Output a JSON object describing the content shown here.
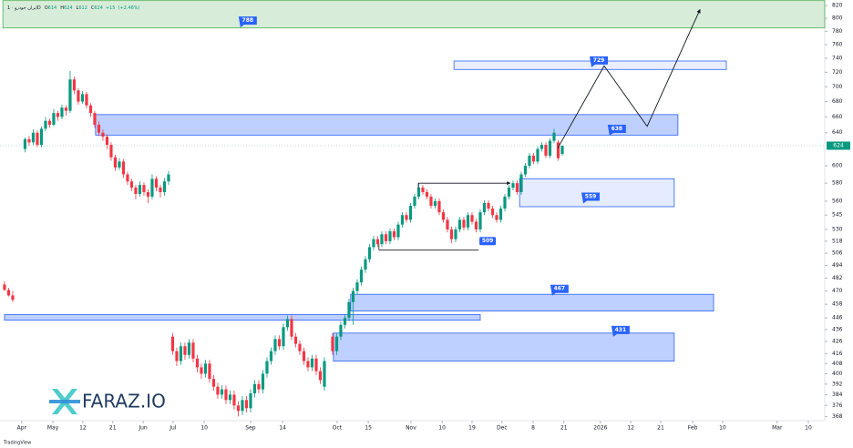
{
  "chart_data": {
    "type": "candlestick",
    "title": "ایران خودرو · 1D",
    "ohlc": [
      {
        "label": "O",
        "value": 614
      },
      {
        "label": "H",
        "value": 624
      },
      {
        "label": "L",
        "value": 612
      },
      {
        "label": "C",
        "value": 624
      }
    ],
    "change": [
      {
        "value": 15,
        "label": "+15"
      },
      {
        "value": 2.46,
        "label": "(+2.46%)"
      }
    ],
    "watermark": "FARAZ.IO",
    "footer": "TradingView",
    "up_color": "#089981",
    "down_color": "#f23645",
    "log_scale": true,
    "grid": false,
    "xlim": [
      -1.1,
      200
    ],
    "ylim": [
      365,
      829
    ],
    "xticks": [
      {
        "value": 4.2,
        "label": "Apr"
      },
      {
        "value": 11.8,
        "label": "May"
      },
      {
        "value": 19.1,
        "label": "12"
      },
      {
        "value": 26.4,
        "label": "21"
      },
      {
        "value": 33.8,
        "label": "Jun"
      },
      {
        "value": 41.1,
        "label": "Jul"
      },
      {
        "value": 48.7,
        "label": "10"
      },
      {
        "value": 60,
        "label": "Sep"
      },
      {
        "value": 67.8,
        "label": "14"
      },
      {
        "value": 81.1,
        "label": "Oct"
      },
      {
        "value": 88.7,
        "label": "15"
      },
      {
        "value": 99.1,
        "label": "Nov"
      },
      {
        "value": 106.7,
        "label": "10"
      },
      {
        "value": 114,
        "label": "19"
      },
      {
        "value": 121.3,
        "label": "Dec"
      },
      {
        "value": 128.9,
        "label": "8"
      },
      {
        "value": 136.4,
        "label": "21"
      },
      {
        "value": 145.3,
        "label": "2026"
      },
      {
        "value": 152.7,
        "label": "12"
      },
      {
        "value": 160,
        "label": "21"
      },
      {
        "value": 167.8,
        "label": "Feb"
      },
      {
        "value": 175.1,
        "label": "10"
      },
      {
        "value": 188.4,
        "label": "Mar"
      },
      {
        "value": 196,
        "label": "10"
      }
    ],
    "yticks": [
      820,
      800,
      780,
      760,
      740,
      720,
      700,
      680,
      660,
      640,
      600,
      580,
      560,
      545,
      530,
      518,
      506,
      494,
      482,
      470,
      458,
      446,
      436,
      426,
      416,
      408,
      400,
      392,
      384,
      376,
      368
    ],
    "x": [
      0,
      1,
      2,
      5,
      6,
      7,
      8,
      9,
      10,
      11,
      12,
      13,
      14,
      15,
      16,
      17,
      18,
      19,
      20,
      21,
      22,
      23,
      24,
      25,
      26,
      27,
      28,
      29,
      30,
      31,
      32,
      33,
      34,
      35,
      36,
      37,
      38,
      39,
      40,
      41,
      42,
      43,
      44,
      45,
      46,
      47,
      48,
      49,
      50,
      51,
      52,
      53,
      54,
      55,
      56,
      57,
      58,
      59,
      60,
      61,
      62,
      63,
      64,
      65,
      66,
      67,
      68,
      69,
      70,
      71,
      72,
      73,
      74,
      75,
      76,
      77,
      78,
      80,
      81,
      82,
      83,
      84,
      85,
      86,
      87,
      88,
      89,
      90,
      91,
      92,
      93,
      94,
      95,
      96,
      97,
      98,
      99,
      100,
      101,
      102,
      103,
      104,
      105,
      106,
      107,
      108,
      109,
      110,
      111,
      112,
      113,
      114,
      115,
      116,
      117,
      118,
      119,
      120,
      121,
      122,
      123,
      124,
      125,
      126,
      127,
      128,
      129,
      130,
      131,
      132,
      133,
      134,
      135,
      136
    ],
    "open": [
      476,
      471,
      466,
      620,
      632,
      628,
      640,
      625,
      645,
      655,
      650,
      665,
      660,
      672,
      668,
      710,
      695,
      680,
      690,
      675,
      665,
      650,
      640,
      635,
      625,
      610,
      598,
      605,
      590,
      582,
      575,
      568,
      578,
      570,
      565,
      585,
      575,
      570,
      582,
      430,
      418,
      410,
      422,
      415,
      425,
      412,
      405,
      400,
      408,
      396,
      390,
      384,
      388,
      380,
      384,
      376,
      372,
      380,
      374,
      385,
      392,
      388,
      400,
      410,
      418,
      428,
      422,
      438,
      445,
      430,
      424,
      418,
      410,
      405,
      412,
      402,
      390,
      430,
      418,
      430,
      440,
      446,
      460,
      470,
      478,
      490,
      500,
      512,
      520,
      515,
      525,
      518,
      528,
      522,
      535,
      545,
      540,
      555,
      565,
      575,
      570,
      565,
      555,
      560,
      548,
      540,
      530,
      520,
      530,
      540,
      532,
      545,
      538,
      530,
      548,
      558,
      552,
      545,
      540,
      552,
      565,
      575,
      580,
      570,
      590,
      600,
      612,
      605,
      620,
      625,
      612,
      630,
      628,
      614
    ],
    "high": [
      479,
      473,
      470,
      634,
      636,
      644,
      643,
      648,
      660,
      658,
      670,
      668,
      676,
      675,
      722,
      714,
      698,
      694,
      693,
      678,
      668,
      654,
      644,
      638,
      628,
      613,
      609,
      608,
      593,
      585,
      578,
      582,
      581,
      573,
      590,
      588,
      578,
      586,
      594,
      433,
      421,
      425,
      425,
      428,
      428,
      415,
      408,
      411,
      411,
      399,
      393,
      391,
      391,
      387,
      387,
      379,
      383,
      383,
      388,
      395,
      395,
      403,
      413,
      421,
      431,
      431,
      441,
      448,
      448,
      433,
      427,
      421,
      413,
      415,
      415,
      405,
      413,
      433,
      433,
      443,
      449,
      463,
      473,
      481,
      493,
      503,
      515,
      523,
      523,
      528,
      528,
      531,
      531,
      538,
      548,
      548,
      558,
      568,
      580,
      578,
      573,
      568,
      563,
      563,
      551,
      543,
      533,
      533,
      543,
      543,
      548,
      548,
      541,
      551,
      561,
      561,
      555,
      548,
      555,
      568,
      578,
      583,
      583,
      593,
      603,
      615,
      615,
      623,
      628,
      628,
      633,
      645,
      631,
      624
    ],
    "low": [
      470,
      465,
      460,
      616,
      624,
      625,
      622,
      622,
      642,
      646,
      648,
      655,
      657,
      662,
      665,
      690,
      676,
      677,
      671,
      660,
      646,
      636,
      630,
      620,
      606,
      594,
      595,
      586,
      578,
      571,
      562,
      565,
      566,
      558,
      562,
      571,
      564,
      566,
      578,
      415,
      406,
      407,
      411,
      412,
      409,
      401,
      396,
      397,
      393,
      387,
      381,
      381,
      377,
      377,
      373,
      368,
      369,
      371,
      371,
      382,
      385,
      385,
      397,
      407,
      415,
      419,
      419,
      435,
      427,
      421,
      415,
      407,
      402,
      402,
      399,
      392,
      387,
      415,
      415,
      427,
      437,
      443,
      440,
      467,
      475,
      487,
      497,
      509,
      512,
      512,
      515,
      515,
      519,
      519,
      532,
      537,
      537,
      552,
      562,
      567,
      562,
      552,
      552,
      545,
      537,
      527,
      516,
      517,
      527,
      529,
      529,
      535,
      527,
      527,
      545,
      549,
      542,
      537,
      537,
      549,
      562,
      572,
      567,
      567,
      587,
      597,
      602,
      602,
      617,
      609,
      609,
      627,
      606,
      612
    ],
    "close": [
      471,
      466,
      462,
      632,
      628,
      640,
      625,
      645,
      655,
      650,
      665,
      660,
      672,
      668,
      710,
      695,
      680,
      690,
      675,
      665,
      650,
      640,
      635,
      625,
      610,
      598,
      605,
      590,
      582,
      575,
      568,
      578,
      570,
      565,
      585,
      575,
      570,
      582,
      590,
      418,
      410,
      422,
      415,
      425,
      412,
      405,
      400,
      408,
      396,
      390,
      384,
      388,
      380,
      384,
      376,
      372,
      380,
      374,
      385,
      392,
      388,
      400,
      410,
      418,
      428,
      422,
      438,
      445,
      430,
      424,
      418,
      410,
      405,
      412,
      402,
      395,
      410,
      418,
      430,
      440,
      446,
      460,
      470,
      478,
      490,
      500,
      512,
      520,
      515,
      525,
      518,
      528,
      522,
      535,
      545,
      540,
      555,
      565,
      575,
      570,
      565,
      555,
      560,
      548,
      540,
      530,
      520,
      530,
      540,
      532,
      545,
      538,
      530,
      548,
      558,
      552,
      545,
      540,
      552,
      565,
      575,
      580,
      570,
      590,
      600,
      612,
      605,
      620,
      625,
      612,
      630,
      640,
      609,
      624
    ],
    "zones": [
      {
        "label": 788,
        "top": 828,
        "bottom": 785,
        "x0": -0.4,
        "x1": 200,
        "label_x": 59.3,
        "fill": "rgba(76,175,80,0.22)",
        "stroke": "#4caf50"
      },
      {
        "label": 729,
        "top": 736,
        "bottom": 724,
        "x0": 109.6,
        "x1": 176,
        "label_x": 144.9,
        "fill": "rgba(41,98,255,0.1)",
        "stroke": "#2962ff"
      },
      {
        "label": 638,
        "top": 663,
        "bottom": 637,
        "x0": 22.2,
        "x1": 164.2,
        "label_x": 149.3,
        "fill": "rgba(41,98,255,0.3)",
        "stroke": "#2962ff"
      },
      {
        "label": 559,
        "top": 585,
        "bottom": 554,
        "x0": 125.6,
        "x1": 163.3,
        "label_x": 142.9,
        "fill": "rgba(41,98,255,0.12)",
        "stroke": "#2962ff"
      },
      {
        "label": 467,
        "top": 467,
        "bottom": 452,
        "x0": 84.4,
        "x1": 172.9,
        "label_x": 135.3,
        "fill": "rgba(41,98,255,0.3)",
        "stroke": "#2962ff"
      },
      {
        "label": 431,
        "top": 433,
        "bottom": 410,
        "x0": 80.2,
        "x1": 163.3,
        "label_x": 150.2,
        "fill": "rgba(41,98,255,0.3)",
        "stroke": "#2962ff"
      },
      {
        "top": 449,
        "bottom": 444,
        "x0": 0,
        "x1": 116,
        "fill": "rgba(41,98,255,0.3)",
        "stroke": "#2962ff"
      }
    ],
    "levels": [
      {
        "price": 580,
        "x0": 100.9,
        "x1": 123.3
      },
      {
        "price": 509,
        "x0": 91.3,
        "x1": 115.6,
        "label": 509,
        "label_x": 117.8
      }
    ],
    "projection": {
      "x": [
        134.9,
        146.2,
        156.7,
        169.6
      ],
      "y": [
        621,
        729,
        648,
        814
      ]
    }
  }
}
